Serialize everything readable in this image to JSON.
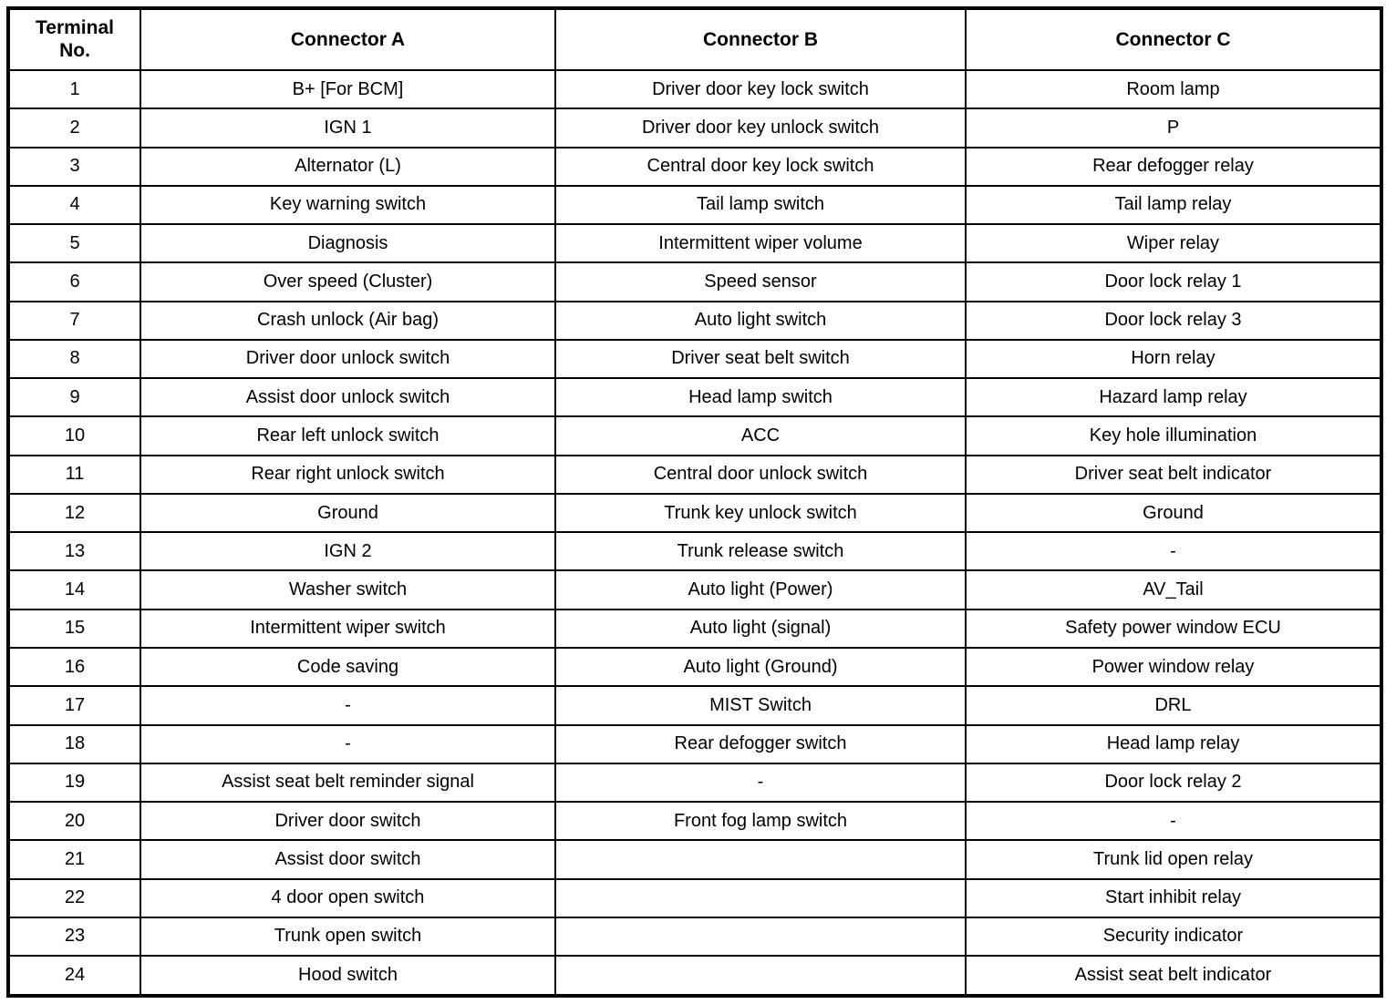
{
  "table": {
    "headers": [
      "Terminal\nNo.",
      "Connector A",
      "Connector B",
      "Connector C"
    ],
    "rows": [
      [
        "1",
        "B+ [For BCM]",
        "Driver door key lock switch",
        "Room lamp"
      ],
      [
        "2",
        "IGN 1",
        "Driver door key unlock switch",
        "P"
      ],
      [
        "3",
        "Alternator (L)",
        "Central door key lock switch",
        "Rear defogger relay"
      ],
      [
        "4",
        "Key warning switch",
        "Tail lamp switch",
        "Tail lamp relay"
      ],
      [
        "5",
        "Diagnosis",
        "Intermittent wiper volume",
        "Wiper relay"
      ],
      [
        "6",
        "Over speed (Cluster)",
        "Speed sensor",
        "Door lock relay 1"
      ],
      [
        "7",
        "Crash unlock (Air bag)",
        "Auto light switch",
        "Door lock relay 3"
      ],
      [
        "8",
        "Driver door unlock switch",
        "Driver seat belt switch",
        "Horn relay"
      ],
      [
        "9",
        "Assist door unlock switch",
        "Head lamp switch",
        "Hazard lamp relay"
      ],
      [
        "10",
        "Rear left unlock switch",
        "ACC",
        "Key hole illumination"
      ],
      [
        "11",
        "Rear right unlock switch",
        "Central door unlock switch",
        "Driver seat belt indicator"
      ],
      [
        "12",
        "Ground",
        "Trunk key unlock switch",
        "Ground"
      ],
      [
        "13",
        "IGN 2",
        "Trunk release switch",
        "-"
      ],
      [
        "14",
        "Washer switch",
        "Auto light (Power)",
        "AV_Tail"
      ],
      [
        "15",
        "Intermittent wiper switch",
        "Auto light (signal)",
        "Safety power window ECU"
      ],
      [
        "16",
        "Code saving",
        "Auto light (Ground)",
        "Power window relay"
      ],
      [
        "17",
        "-",
        "MIST Switch",
        "DRL"
      ],
      [
        "18",
        "-",
        "Rear defogger switch",
        "Head lamp relay"
      ],
      [
        "19",
        "Assist seat belt reminder signal",
        "-",
        "Door lock relay 2"
      ],
      [
        "20",
        "Driver door switch",
        "Front fog lamp switch",
        "-"
      ],
      [
        "21",
        "Assist door switch",
        "",
        "Trunk lid open relay"
      ],
      [
        "22",
        "4 door open switch",
        "",
        "Start inhibit relay"
      ],
      [
        "23",
        "Trunk open switch",
        "",
        "Security indicator"
      ],
      [
        "24",
        "Hood switch",
        "",
        "Assist seat belt indicator"
      ]
    ]
  }
}
